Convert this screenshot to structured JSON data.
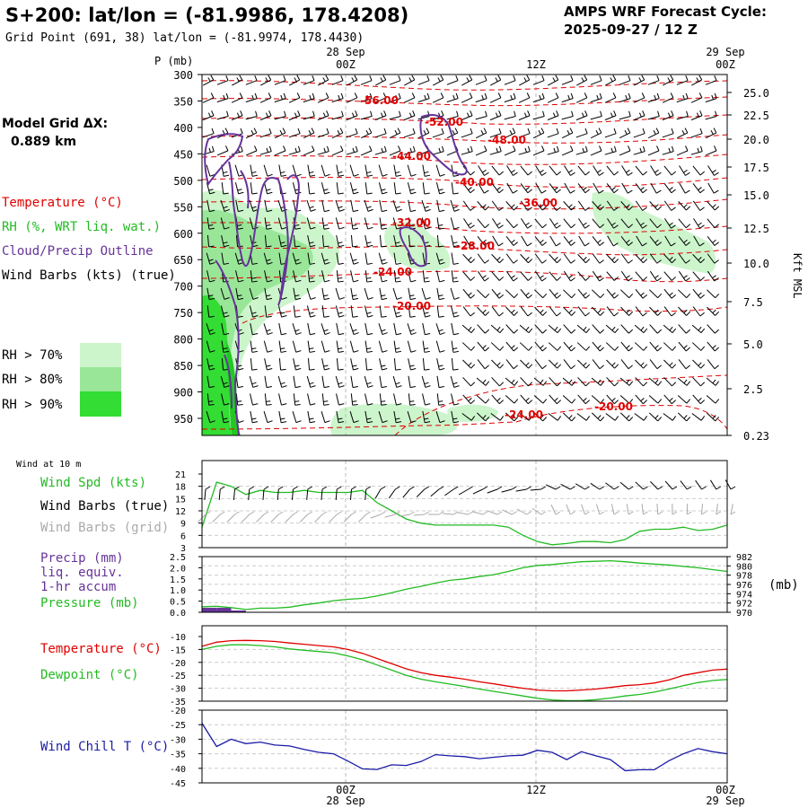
{
  "header": {
    "title": "S+200:  lat/lon = (-81.9986, 178.4208)",
    "grid_point": "Grid Point (691, 38) lat/lon = (-81.9974, 178.4430)",
    "cycle_label": "AMPS WRF Forecast Cycle:",
    "cycle_value": "2025-09-27 / 12  Z"
  },
  "time_axis": {
    "top_dates": [
      "28 Sep",
      "29 Sep"
    ],
    "ticks": [
      "00Z",
      "12Z",
      "00Z"
    ],
    "bottom_dates": [
      "28 Sep",
      "29 Sep"
    ]
  },
  "model_grid": {
    "label": "Model Grid ΔX:",
    "value": "0.889 km"
  },
  "legend": {
    "temperature": {
      "label": "Temperature (°C)",
      "color": "#e00000"
    },
    "rh": {
      "label": "RH (%, WRT liq. wat.)",
      "color": "#22bb22"
    },
    "cloud": {
      "label": "Cloud/Precip Outline",
      "color": "#663399"
    },
    "wind": {
      "label": "Wind Barbs (kts) (true)",
      "color": "#000000"
    },
    "rh_levels": [
      {
        "label": "RH > 70%",
        "color": "#ccf5cc"
      },
      {
        "label": "RH > 80%",
        "color": "#99e699"
      },
      {
        "label": "RH > 90%",
        "color": "#33dd33"
      }
    ]
  },
  "sounding": {
    "p_axis_label": "P (mb)",
    "pressure_levels": [
      "300",
      "350",
      "400",
      "450",
      "500",
      "550",
      "600",
      "650",
      "700",
      "750",
      "800",
      "850",
      "900",
      "950"
    ],
    "height_label": "Kft MSL",
    "height_ticks": [
      "25.0",
      "22.5",
      "20.0",
      "17.5",
      "15.0",
      "12.5",
      "10.0",
      "7.5",
      "5.0",
      "2.5",
      "0.23"
    ],
    "isotherm_labels": [
      "-56.00",
      "-52.00",
      "-48.00",
      "-44.00",
      "-40.00",
      "-36.00",
      "-32.00",
      "-28.00",
      "-24.00",
      "-20.00",
      "-24.00",
      "-20.00"
    ]
  },
  "wind_panel": {
    "header": "Wind at 10 m",
    "spd_label": "Wind Spd (kts)",
    "barb_true_label": "Wind Barbs (true)",
    "barb_grid_label": "Wind Barbs (grid)",
    "y_ticks": [
      "21",
      "18",
      "15",
      "12",
      "9",
      "6",
      "3"
    ],
    "colors": {
      "speed": "#22bb22",
      "true": "#000000",
      "grid": "#aaaaaa"
    }
  },
  "precip_panel": {
    "labels": [
      "Precip (mm)",
      "liq. equiv.",
      "1-hr accum"
    ],
    "pressure_label": "Pressure (mb)",
    "left_ticks": [
      "2.5",
      "2.0",
      "1.5",
      "1.0",
      "0.5",
      "0.0"
    ],
    "right_ticks": [
      "982",
      "980",
      "978",
      "976",
      "974",
      "972",
      "970"
    ],
    "right_unit": "(mb)",
    "colors": {
      "precip": "#663399",
      "pressure": "#22bb22"
    }
  },
  "temp_panel": {
    "temp_label": "Temperature (°C)",
    "dew_label": "Dewpoint (°C)",
    "y_ticks": [
      "-10",
      "-15",
      "-20",
      "-25",
      "-30",
      "-35"
    ],
    "colors": {
      "temp": "#e00000",
      "dew": "#22bb22"
    }
  },
  "chill_panel": {
    "label": "Wind Chill T (°C)",
    "y_ticks": [
      "-20",
      "-25",
      "-30",
      "-35",
      "-40",
      "-45"
    ],
    "color": "#1a1aa6"
  },
  "chart_data": [
    {
      "type": "line",
      "title": "Wind at 10 m",
      "ylabel": "Wind Spd (kts)",
      "ylim": [
        3,
        21
      ],
      "x_hours": [
        0,
        1,
        2,
        3,
        4,
        5,
        6,
        7,
        8,
        9,
        10,
        11,
        12,
        13,
        14,
        15,
        16,
        17,
        18,
        19,
        20,
        21,
        22,
        23,
        24,
        25,
        26,
        27,
        28,
        29,
        30,
        31,
        32,
        33,
        34,
        35,
        36
      ],
      "series": [
        {
          "name": "Wind Spd (kts)",
          "values": [
            8,
            19,
            18,
            16,
            17,
            16.5,
            16.5,
            17,
            16.5,
            16.5,
            16.5,
            17,
            14,
            12,
            10,
            9,
            8.5,
            8.5,
            8.5,
            8.5,
            8.5,
            8,
            6,
            4.5,
            3.7,
            4,
            4.5,
            4.5,
            4.2,
            5,
            7,
            7.5,
            7.5,
            8,
            7.2,
            7.5,
            8.5
          ]
        }
      ]
    },
    {
      "type": "line",
      "title": "Precip / Pressure",
      "series": [
        {
          "name": "Precip (mm)",
          "ylim": [
            0,
            2.5
          ],
          "values": [
            0.2,
            0.2,
            0.05,
            0,
            0,
            0,
            0,
            0,
            0,
            0,
            0,
            0,
            0,
            0,
            0,
            0,
            0,
            0,
            0,
            0,
            0,
            0,
            0,
            0,
            0,
            0,
            0,
            0,
            0,
            0,
            0,
            0,
            0,
            0,
            0,
            0,
            0
          ]
        },
        {
          "name": "Pressure (mb)",
          "ylim": [
            970,
            982
          ],
          "values": [
            971.2,
            971.3,
            971.0,
            970.6,
            970.9,
            970.9,
            971.1,
            971.6,
            972.0,
            972.5,
            972.8,
            973.0,
            973.5,
            974.2,
            975.0,
            975.6,
            976.3,
            976.9,
            977.2,
            977.7,
            978.1,
            978.8,
            979.6,
            980.1,
            980.3,
            980.6,
            980.9,
            981.0,
            981.1,
            980.9,
            980.6,
            980.4,
            980.2,
            979.9,
            979.6,
            979.2,
            978.8
          ]
        }
      ]
    },
    {
      "type": "line",
      "title": "Temperature / Dewpoint",
      "ylim": [
        -35,
        -10
      ],
      "series": [
        {
          "name": "Temperature (°C)",
          "values": [
            -13.8,
            -12.2,
            -11.6,
            -11.5,
            -11.6,
            -11.9,
            -12.5,
            -13.0,
            -13.5,
            -14.0,
            -15.0,
            -16.5,
            -18.5,
            -20.5,
            -22.5,
            -24.0,
            -25.0,
            -25.7,
            -26.5,
            -27.5,
            -28.3,
            -29.2,
            -30.0,
            -30.7,
            -31.0,
            -31.0,
            -30.7,
            -30.3,
            -29.7,
            -29.0,
            -28.6,
            -28.0,
            -26.8,
            -25.0,
            -24.0,
            -23.0,
            -22.6
          ]
        },
        {
          "name": "Dewpoint (°C)",
          "values": [
            -15.0,
            -13.8,
            -13.2,
            -13.2,
            -13.5,
            -14.0,
            -14.8,
            -15.3,
            -15.8,
            -16.3,
            -17.5,
            -19.0,
            -21.0,
            -23.0,
            -25.0,
            -26.5,
            -27.5,
            -28.4,
            -29.3,
            -30.3,
            -31.2,
            -32.1,
            -33.0,
            -33.9,
            -34.5,
            -34.8,
            -34.8,
            -34.4,
            -33.8,
            -33.0,
            -32.4,
            -31.5,
            -30.3,
            -29.0,
            -27.8,
            -27.0,
            -26.6
          ]
        }
      ]
    },
    {
      "type": "line",
      "title": "Wind Chill",
      "ylim": [
        -45,
        -20
      ],
      "series": [
        {
          "name": "Wind Chill T (°C)",
          "values": [
            -24.5,
            -32.5,
            -30.0,
            -31.5,
            -31.0,
            -32.0,
            -32.3,
            -33.5,
            -34.5,
            -35.0,
            -37.5,
            -40.2,
            -40.4,
            -38.8,
            -39.0,
            -37.7,
            -35.3,
            -35.7,
            -36.0,
            -36.7,
            -36.2,
            -35.7,
            -35.5,
            -33.8,
            -34.5,
            -37.0,
            -34.3,
            -35.7,
            -37.0,
            -40.8,
            -40.5,
            -40.5,
            -37.4,
            -35.0,
            -33.2,
            -34.3,
            -35.0
          ]
        }
      ]
    }
  ]
}
